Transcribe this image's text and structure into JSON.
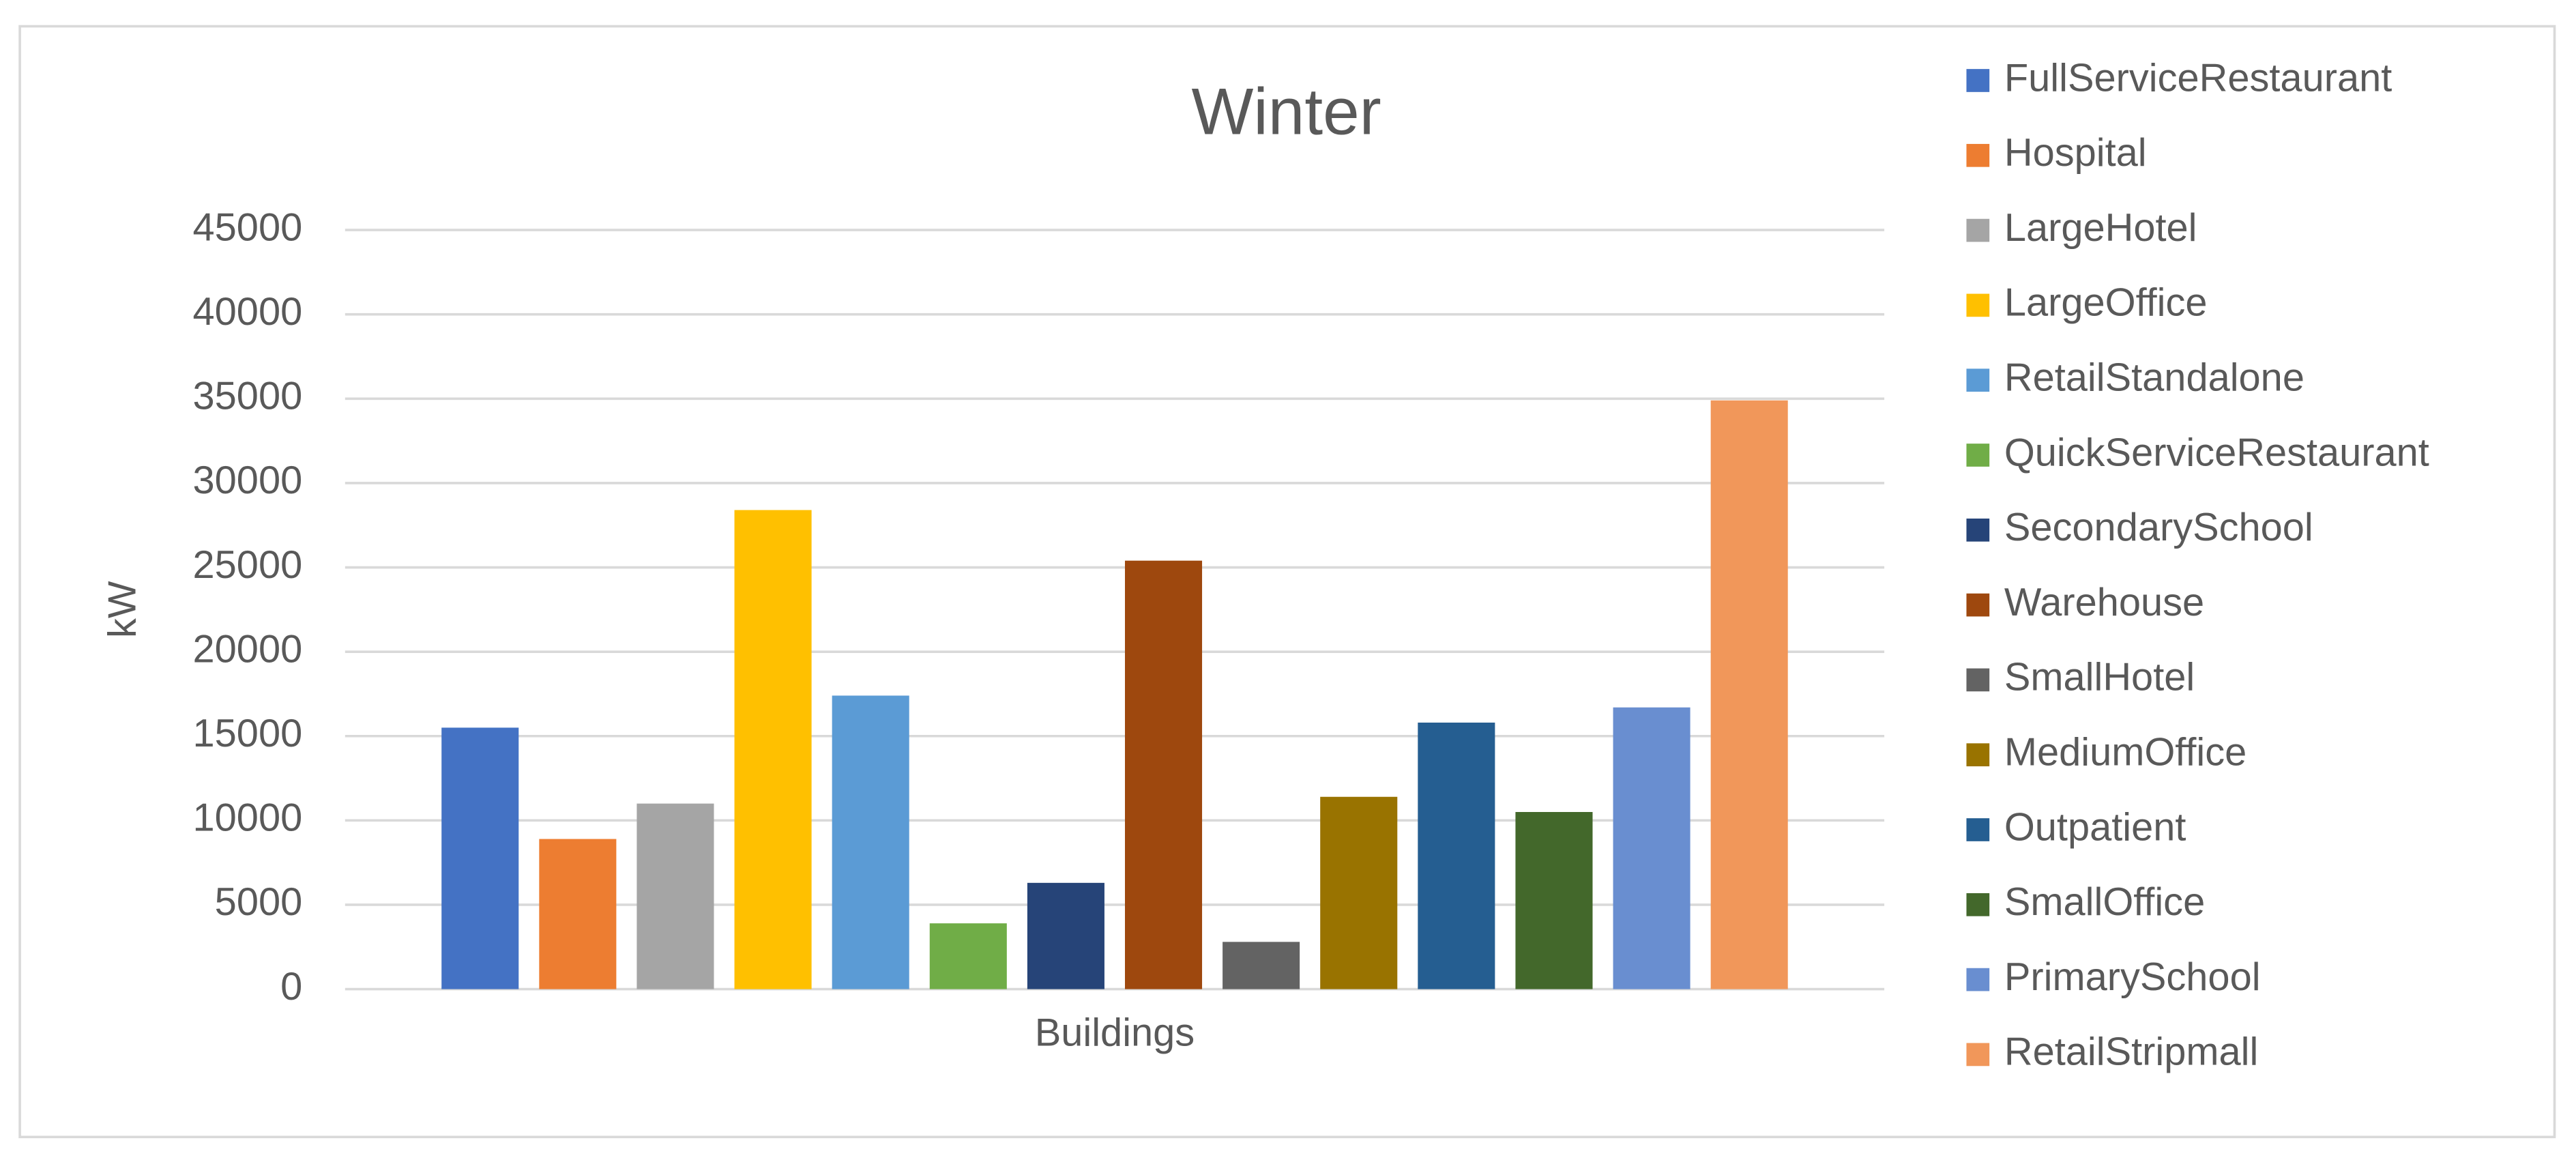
{
  "chart_data": {
    "type": "bar",
    "title": "Winter",
    "y_label": "kW",
    "categories": [
      "Buildings"
    ],
    "series": [
      {
        "name": "FullServiceRestaurant",
        "color": "#4472c4",
        "values": [
          15500
        ]
      },
      {
        "name": "Hospital",
        "color": "#ed7d31",
        "values": [
          8900
        ]
      },
      {
        "name": "LargeHotel",
        "color": "#a5a5a5",
        "values": [
          11000
        ]
      },
      {
        "name": "LargeOffice",
        "color": "#ffc000",
        "values": [
          28400
        ]
      },
      {
        "name": "RetailStandalone",
        "color": "#5b9bd5",
        "values": [
          17400
        ]
      },
      {
        "name": "QuickServiceRestaurant",
        "color": "#70ad47",
        "values": [
          3900
        ]
      },
      {
        "name": "SecondarySchool",
        "color": "#264478",
        "values": [
          6300
        ]
      },
      {
        "name": "Warehouse",
        "color": "#9e480e",
        "values": [
          25400
        ]
      },
      {
        "name": "SmallHotel",
        "color": "#636363",
        "values": [
          2800
        ]
      },
      {
        "name": "MediumOffice",
        "color": "#997300",
        "values": [
          11400
        ]
      },
      {
        "name": "Outpatient",
        "color": "#255e91",
        "values": [
          15800
        ]
      },
      {
        "name": "SmallOffice",
        "color": "#43682b",
        "values": [
          10500
        ]
      },
      {
        "name": "PrimarySchool",
        "color": "#698ed0",
        "values": [
          16700
        ]
      },
      {
        "name": "RetailStripmall",
        "color": "#f1975a",
        "values": [
          34900
        ]
      }
    ],
    "ylim": [
      0,
      45000
    ],
    "yticks": [
      0,
      5000,
      10000,
      15000,
      20000,
      25000,
      30000,
      35000,
      40000,
      45000
    ],
    "grid": true,
    "legend": "right"
  }
}
